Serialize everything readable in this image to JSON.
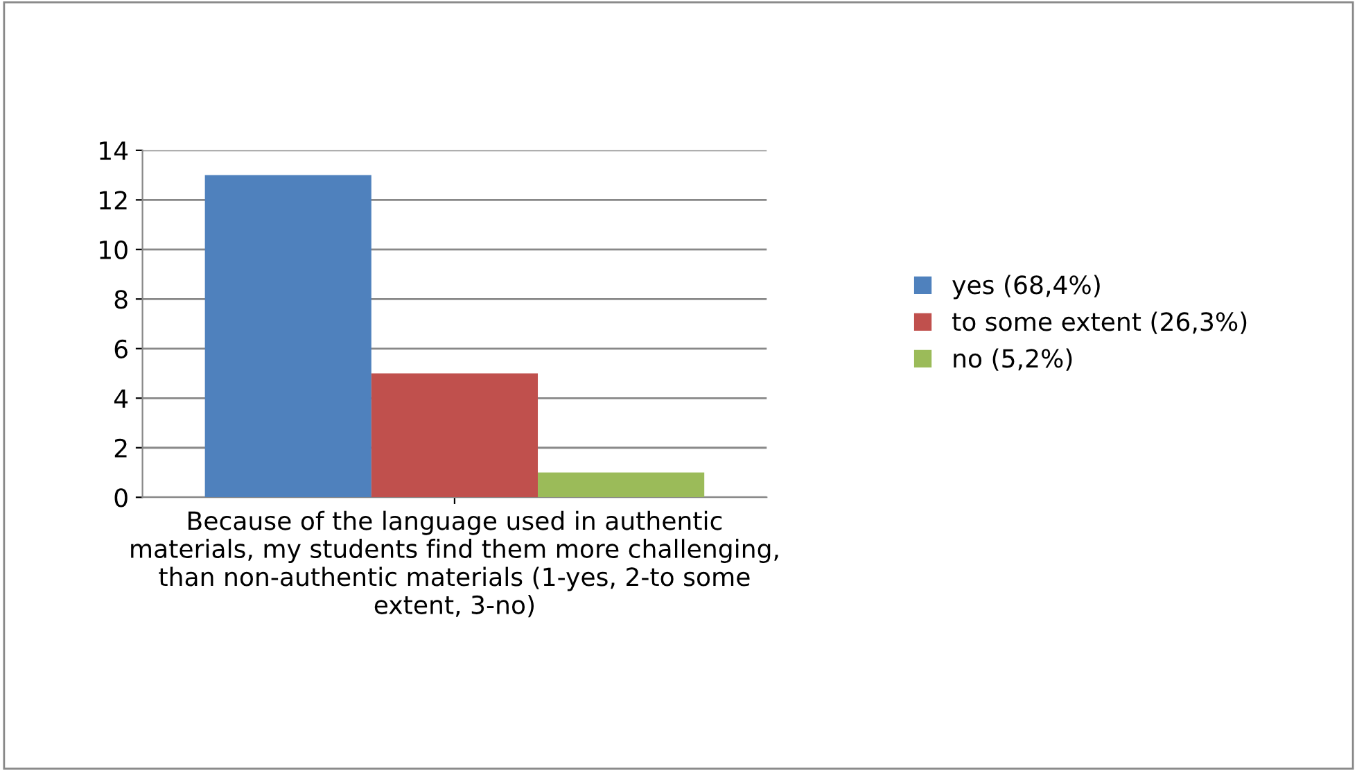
{
  "chart_data": {
    "type": "bar",
    "categories": [
      "Because of the language used in authentic materials, my students find them more challenging, than non-authentic materials (1-yes, 2-to some extent, 3-no)"
    ],
    "series": [
      {
        "name": "yes (68,4%)",
        "color": "#4f81bd",
        "values": [
          13
        ]
      },
      {
        "name": "to some extent (26,3%)",
        "color": "#c0504d",
        "values": [
          5
        ]
      },
      {
        "name": "no (5,2%)",
        "color": "#9bbb59",
        "values": [
          1
        ]
      }
    ],
    "ylim": [
      0,
      14
    ],
    "yticks": [
      0,
      2,
      4,
      6,
      8,
      10,
      12,
      14
    ],
    "grid": "y",
    "legend": "right"
  }
}
